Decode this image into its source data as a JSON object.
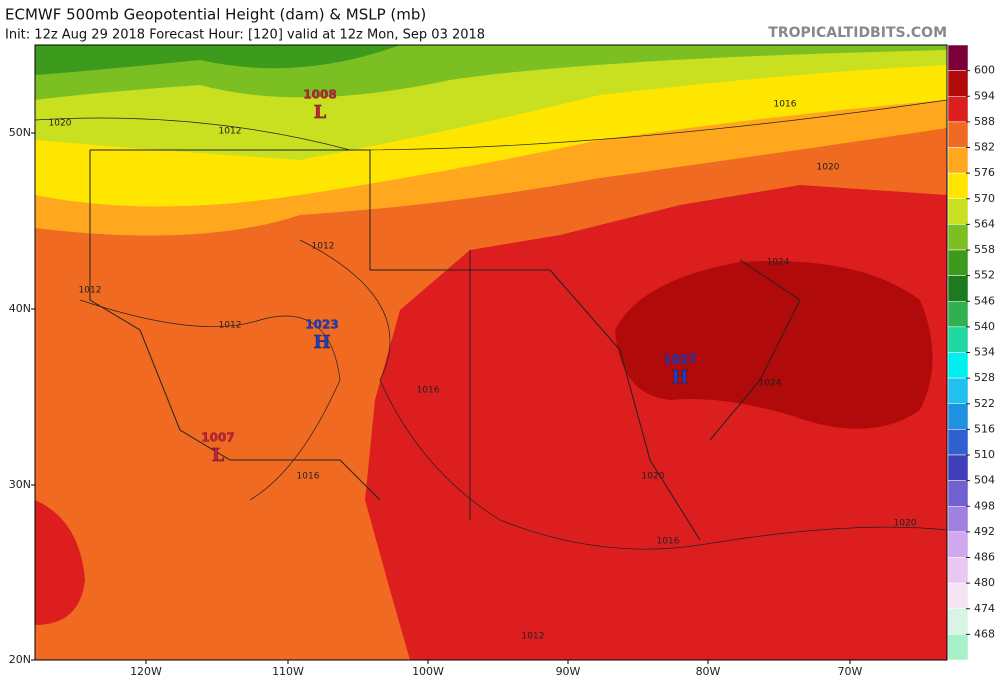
{
  "header": {
    "title": "ECMWF 500mb Geopotential Height (dam) & MSLP (mb)",
    "subtitle": "Init: 12z Aug 29 2018   Forecast Hour: [120]   valid at 12z Mon, Sep 03 2018",
    "credit": "TROPICALTIDBITS.COM"
  },
  "latitudes": [
    "50N",
    "40N",
    "30N",
    "20N"
  ],
  "longitudes": [
    "120W",
    "110W",
    "100W",
    "90W",
    "80W",
    "70W"
  ],
  "colorbar": {
    "levels": [
      600,
      594,
      588,
      582,
      576,
      570,
      564,
      558,
      552,
      546,
      540,
      534,
      528,
      522,
      516,
      510,
      504,
      498,
      492,
      486,
      480,
      474,
      468
    ],
    "colors": [
      "#7a0038",
      "#b00a0a",
      "#dd1e1e",
      "#f06a22",
      "#ffa81e",
      "#ffe600",
      "#c8e020",
      "#7cbf22",
      "#3c9a1c",
      "#1e7a1e",
      "#30b050",
      "#20d8a0",
      "#00f0f0",
      "#20c0f0",
      "#2090e0",
      "#3060d0",
      "#4040b8",
      "#7060d0",
      "#a080e0",
      "#d0a8f0",
      "#e8c8f0",
      "#f4e4f4",
      "#d8f4e4",
      "#a8f0c8"
    ]
  },
  "pressure_centers": [
    {
      "symbol": "H",
      "value": 1023
    },
    {
      "symbol": "H",
      "value": 1027
    },
    {
      "symbol": "L",
      "value": 1007
    },
    {
      "symbol": "L",
      "value": 1008
    }
  ],
  "isobar_labels": [
    1020,
    1012,
    1016,
    1020,
    1012,
    1012,
    1012,
    1024,
    1024,
    1016,
    1016,
    1020,
    1016,
    1020,
    1012
  ]
}
